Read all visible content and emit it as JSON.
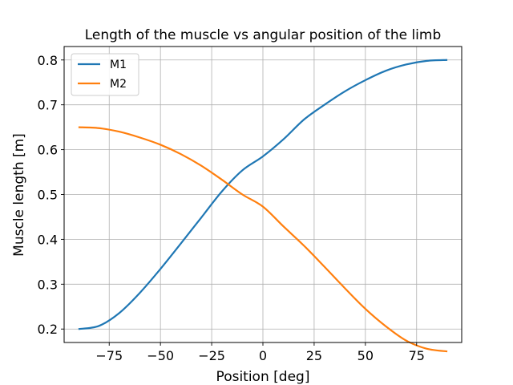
{
  "chart_data": {
    "type": "line",
    "title": "Length of the muscle vs angular position of the limb",
    "xlabel": "Position [deg]",
    "ylabel": "Muscle length [m]",
    "xlim": [
      -97,
      97
    ],
    "ylim": [
      0.17,
      0.83
    ],
    "xticks": [
      -75,
      -50,
      -25,
      0,
      25,
      50,
      75
    ],
    "xtick_labels": [
      "−75",
      "−50",
      "−25",
      "0",
      "25",
      "50",
      "75"
    ],
    "yticks": [
      0.2,
      0.3,
      0.4,
      0.5,
      0.6,
      0.7,
      0.8
    ],
    "ytick_labels": [
      "0.2",
      "0.3",
      "0.4",
      "0.5",
      "0.6",
      "0.7",
      "0.8"
    ],
    "grid": true,
    "legend_position": "top-left",
    "x": [
      -90,
      -80,
      -70,
      -60,
      -50,
      -40,
      -30,
      -20,
      -10,
      0,
      10,
      20,
      30,
      40,
      50,
      60,
      70,
      80,
      90
    ],
    "series": [
      {
        "name": "M1",
        "color": "#1f77b4",
        "values": [
          0.2,
          0.207,
          0.236,
          0.281,
          0.334,
          0.391,
          0.449,
          0.507,
          0.554,
          0.585,
          0.623,
          0.667,
          0.7,
          0.73,
          0.755,
          0.776,
          0.79,
          0.798,
          0.8
        ]
      },
      {
        "name": "M2",
        "color": "#ff7f0e",
        "values": [
          0.65,
          0.648,
          0.64,
          0.627,
          0.611,
          0.59,
          0.564,
          0.533,
          0.5,
          0.473,
          0.429,
          0.386,
          0.339,
          0.291,
          0.245,
          0.206,
          0.174,
          0.156,
          0.15
        ]
      }
    ]
  }
}
